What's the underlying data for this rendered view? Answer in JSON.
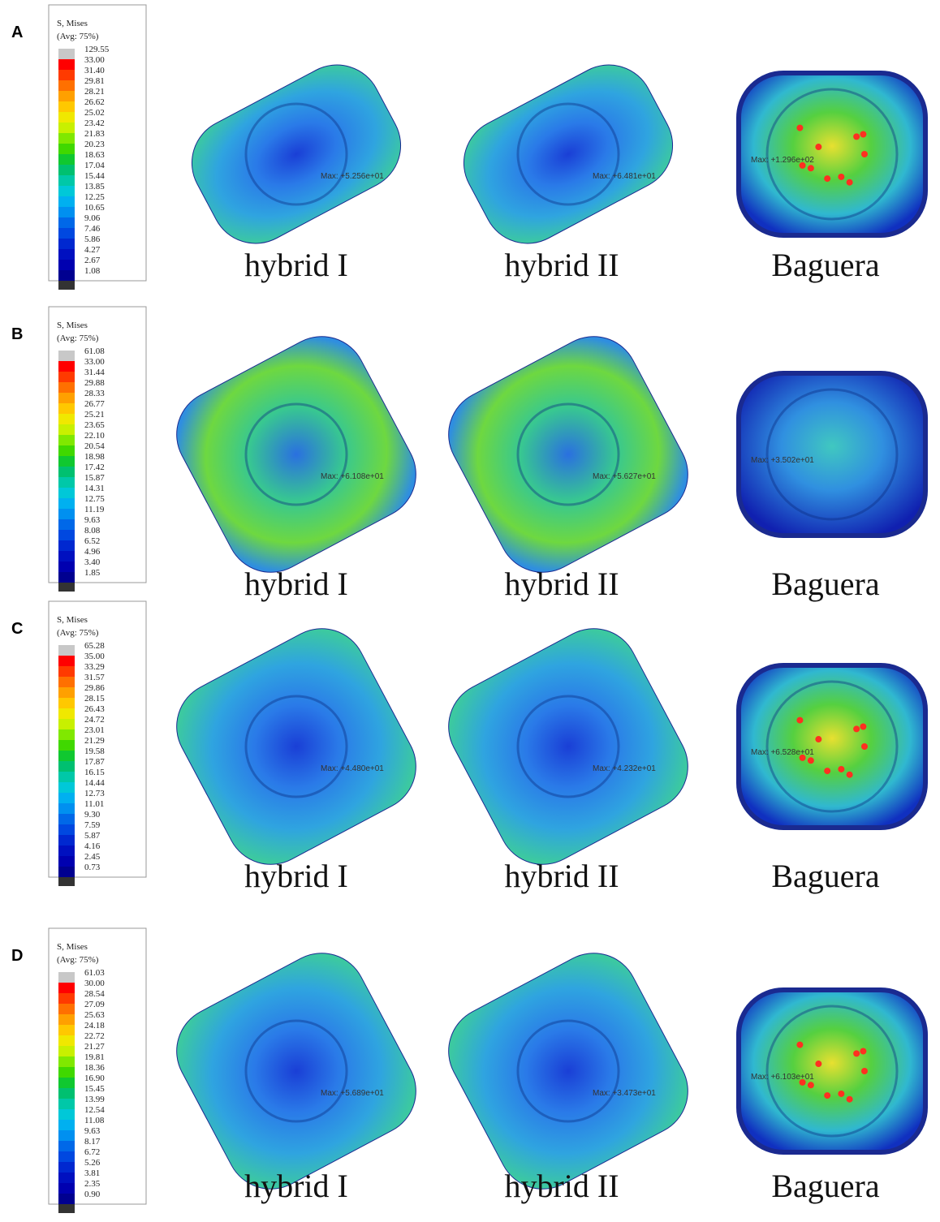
{
  "panels": [
    {
      "letter": "A",
      "legend": {
        "title": "S, Mises",
        "subtitle": "(Avg: 75%)",
        "values": [
          "129.55",
          "33.00",
          "31.40",
          "29.81",
          "28.21",
          "26.62",
          "25.02",
          "23.42",
          "21.83",
          "20.23",
          "18.63",
          "17.04",
          "15.44",
          "13.85",
          "12.25",
          "10.65",
          "9.06",
          "7.46",
          "5.86",
          "4.27",
          "2.67",
          "1.08"
        ]
      },
      "images": [
        {
          "label": "hybrid I",
          "max": "Max: +5.256e+01"
        },
        {
          "label": "hybrid II",
          "max": "Max: +6.481e+01"
        },
        {
          "label": "Baguera",
          "max": "Max: +1.296e+02"
        }
      ]
    },
    {
      "letter": "B",
      "legend": {
        "title": "S, Mises",
        "subtitle": "(Avg: 75%)",
        "values": [
          "61.08",
          "33.00",
          "31.44",
          "29.88",
          "28.33",
          "26.77",
          "25.21",
          "23.65",
          "22.10",
          "20.54",
          "18.98",
          "17.42",
          "15.87",
          "14.31",
          "12.75",
          "11.19",
          "9.63",
          "8.08",
          "6.52",
          "4.96",
          "3.40",
          "1.85"
        ]
      },
      "images": [
        {
          "label": "hybrid I",
          "max": "Max: +6.108e+01"
        },
        {
          "label": "hybrid II",
          "max": "Max: +5.627e+01"
        },
        {
          "label": "Baguera",
          "max": "Max: +3.502e+01"
        }
      ]
    },
    {
      "letter": "C",
      "legend": {
        "title": "S, Mises",
        "subtitle": "(Avg: 75%)",
        "values": [
          "65.28",
          "35.00",
          "33.29",
          "31.57",
          "29.86",
          "28.15",
          "26.43",
          "24.72",
          "23.01",
          "21.29",
          "19.58",
          "17.87",
          "16.15",
          "14.44",
          "12.73",
          "11.01",
          "9.30",
          "7.59",
          "5.87",
          "4.16",
          "2.45",
          "0.73"
        ]
      },
      "images": [
        {
          "label": "hybrid I",
          "max": "Max: +4.480e+01"
        },
        {
          "label": "hybrid II",
          "max": "Max: +4.232e+01"
        },
        {
          "label": "Baguera",
          "max": "Max: +6.528e+01"
        }
      ]
    },
    {
      "letter": "D",
      "legend": {
        "title": "S, Mises",
        "subtitle": "(Avg: 75%)",
        "values": [
          "61.03",
          "30.00",
          "28.54",
          "27.09",
          "25.63",
          "24.18",
          "22.72",
          "21.27",
          "19.81",
          "18.36",
          "16.90",
          "15.45",
          "13.99",
          "12.54",
          "11.08",
          "9.63",
          "8.17",
          "6.72",
          "5.26",
          "3.81",
          "2.35",
          "0.90"
        ]
      },
      "images": [
        {
          "label": "hybrid I",
          "max": "Max: +5.689e+01"
        },
        {
          "label": "hybrid II",
          "max": "Max: +3.473e+01"
        },
        {
          "label": "Baguera",
          "max": "Max: +6.103e+01"
        }
      ]
    }
  ]
}
